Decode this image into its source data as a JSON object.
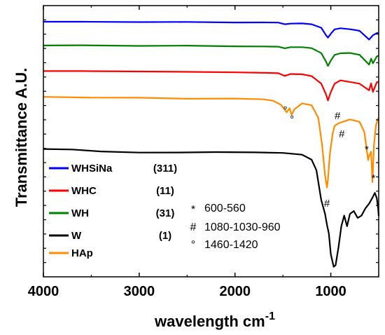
{
  "chart_data": {
    "type": "line",
    "title": "",
    "xlabel": "wavelength cm",
    "xlabel_superscript": "-1",
    "ylabel": "Transmittance A.U.",
    "xlim": [
      4000,
      500
    ],
    "x_ticks": [
      "4000",
      "3000",
      "2000",
      "1000"
    ],
    "x_tick_values": [
      4000,
      3000,
      2000,
      1000
    ],
    "y_ticks_visible": false,
    "grid": false,
    "legend_placement": "bottom-left",
    "series": [
      {
        "name": "WHSiNa",
        "code": "(311)",
        "color": "#0000ff",
        "points": [
          [
            4000,
            0.6
          ],
          [
            3600,
            0.8
          ],
          [
            3000,
            1.2
          ],
          [
            2500,
            1.6
          ],
          [
            2000,
            1.8
          ],
          [
            1700,
            2.0
          ],
          [
            1550,
            2.4
          ],
          [
            1480,
            4.5
          ],
          [
            1420,
            3.5
          ],
          [
            1300,
            3.0
          ],
          [
            1200,
            4.5
          ],
          [
            1100,
            10
          ],
          [
            1050,
            20
          ],
          [
            1030,
            24
          ],
          [
            1000,
            18
          ],
          [
            960,
            12
          ],
          [
            900,
            10
          ],
          [
            800,
            12
          ],
          [
            700,
            14
          ],
          [
            600,
            26
          ],
          [
            560,
            20
          ],
          [
            520,
            17
          ],
          [
            500,
            17
          ]
        ]
      },
      {
        "name": "WH",
        "code": "(31)",
        "color": "#008000",
        "points": [
          [
            4000,
            0.6
          ],
          [
            3600,
            0.8
          ],
          [
            3000,
            1.1
          ],
          [
            2500,
            1.5
          ],
          [
            2000,
            1.7
          ],
          [
            1700,
            2.0
          ],
          [
            1550,
            2.4
          ],
          [
            1480,
            4.5
          ],
          [
            1420,
            3.5
          ],
          [
            1300,
            3.0
          ],
          [
            1200,
            5.0
          ],
          [
            1100,
            12
          ],
          [
            1050,
            24
          ],
          [
            1030,
            30
          ],
          [
            1000,
            22
          ],
          [
            960,
            14
          ],
          [
            900,
            12
          ],
          [
            800,
            12
          ],
          [
            700,
            14
          ],
          [
            600,
            28
          ],
          [
            580,
            20
          ],
          [
            560,
            26
          ],
          [
            520,
            16
          ],
          [
            500,
            16
          ]
        ]
      },
      {
        "name": "WHC",
        "code": "(11)",
        "color": "#ff0000",
        "points": [
          [
            4000,
            0.5
          ],
          [
            3600,
            0.8
          ],
          [
            3000,
            1.0
          ],
          [
            2500,
            1.6
          ],
          [
            2000,
            2.0
          ],
          [
            1700,
            2.5
          ],
          [
            1550,
            3.0
          ],
          [
            1480,
            7.0
          ],
          [
            1420,
            5.0
          ],
          [
            1300,
            5.0
          ],
          [
            1200,
            8.0
          ],
          [
            1100,
            18
          ],
          [
            1050,
            34
          ],
          [
            1030,
            42
          ],
          [
            1000,
            30
          ],
          [
            960,
            18
          ],
          [
            900,
            14
          ],
          [
            800,
            16
          ],
          [
            700,
            18
          ],
          [
            600,
            28
          ],
          [
            580,
            18
          ],
          [
            560,
            30
          ],
          [
            520,
            16
          ],
          [
            500,
            16
          ]
        ]
      },
      {
        "name": "W",
        "code": "(1)",
        "color": "#000000",
        "points": [
          [
            4000,
            0
          ],
          [
            3700,
            0.5
          ],
          [
            3400,
            3
          ],
          [
            3000,
            5
          ],
          [
            2600,
            5
          ],
          [
            2200,
            4
          ],
          [
            1800,
            4
          ],
          [
            1500,
            5
          ],
          [
            1300,
            8
          ],
          [
            1200,
            15
          ],
          [
            1150,
            30
          ],
          [
            1100,
            72
          ],
          [
            1060,
            92
          ],
          [
            1040,
            108
          ],
          [
            1020,
            120
          ],
          [
            1000,
            150
          ],
          [
            970,
            168
          ],
          [
            950,
            165
          ],
          [
            920,
            140
          ],
          [
            890,
            110
          ],
          [
            860,
            95
          ],
          [
            830,
            110
          ],
          [
            800,
            92
          ],
          [
            760,
            88
          ],
          [
            720,
            98
          ],
          [
            680,
            95
          ],
          [
            640,
            85
          ],
          [
            600,
            78
          ],
          [
            560,
            68
          ],
          [
            540,
            62
          ],
          [
            520,
            70
          ],
          [
            505,
            85
          ],
          [
            500,
            95
          ]
        ]
      },
      {
        "name": "HAp",
        "code": "",
        "color": "#ff8c00",
        "points": [
          [
            4000,
            0.5
          ],
          [
            3500,
            1.0
          ],
          [
            3000,
            1.8
          ],
          [
            2500,
            2.5
          ],
          [
            2000,
            3.0
          ],
          [
            1700,
            4.0
          ],
          [
            1600,
            6.0
          ],
          [
            1520,
            12
          ],
          [
            1460,
            22
          ],
          [
            1430,
            16
          ],
          [
            1410,
            26
          ],
          [
            1380,
            18
          ],
          [
            1300,
            10
          ],
          [
            1200,
            12
          ],
          [
            1130,
            30
          ],
          [
            1090,
            70
          ],
          [
            1060,
            112
          ],
          [
            1040,
            130
          ],
          [
            1030,
            118
          ],
          [
            1010,
            82
          ],
          [
            980,
            52
          ],
          [
            960,
            42
          ],
          [
            920,
            38
          ],
          [
            880,
            36
          ],
          [
            800,
            32
          ],
          [
            700,
            36
          ],
          [
            650,
            50
          ],
          [
            610,
            90
          ],
          [
            600,
            85
          ],
          [
            580,
            78
          ],
          [
            565,
            122
          ],
          [
            550,
            70
          ],
          [
            530,
            42
          ],
          [
            510,
            32
          ],
          [
            500,
            30
          ]
        ]
      }
    ],
    "annotations": [
      {
        "text": "°",
        "x": 1475,
        "series": "HAp"
      },
      {
        "text": "°",
        "x": 1405,
        "series": "HAp"
      },
      {
        "text": "#",
        "x": 1040,
        "series": "W"
      },
      {
        "text": "#",
        "x": 930,
        "series": "HAp"
      },
      {
        "text": "#",
        "x": 885,
        "series": "HAp"
      },
      {
        "text": "*",
        "x": 625,
        "series": "HAp"
      },
      {
        "text": "*",
        "x": 555,
        "series": "W"
      }
    ],
    "band_labels": [
      {
        "symbol": "*",
        "range": "600-560"
      },
      {
        "symbol": "#",
        "range": "1080-1030-960"
      },
      {
        "symbol": "°",
        "range": "1460-1420"
      }
    ],
    "legend_order": [
      "WHSiNa",
      "WHC",
      "WH",
      "W",
      "HAp"
    ]
  }
}
